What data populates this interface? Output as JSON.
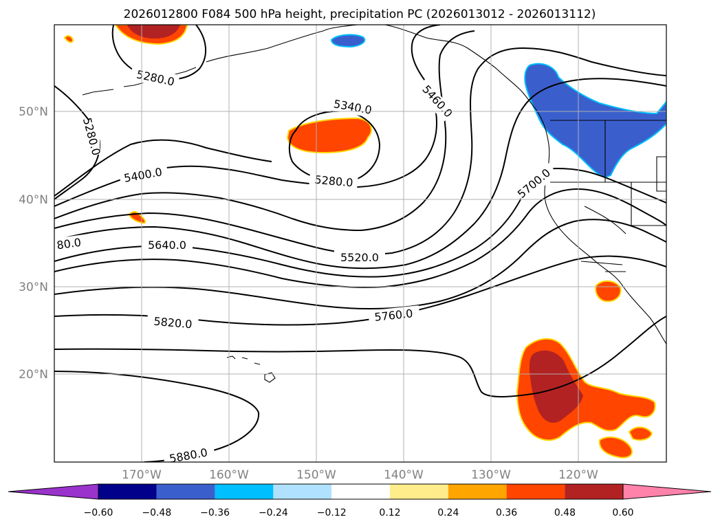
{
  "title": "2026012800 F084 500 hPa height, precipitation PC (2026013012 - 2026013112)",
  "map": {
    "lat_ticks": [
      "50°N",
      "40°N",
      "30°N",
      "20°N"
    ],
    "lon_ticks": [
      "170°W",
      "160°W",
      "150°W",
      "140°W",
      "130°W",
      "120°W"
    ],
    "contour_labels": [
      "5280.0",
      "5280.0",
      "5340.0",
      "5460.0",
      "5400.0",
      "5280.0",
      "5700.0",
      "80.0",
      "5640.0",
      "5520.0",
      "5820.0",
      "5760.0",
      "5880.0"
    ],
    "contour_color": "#000000",
    "gridlines": true
  },
  "colorbar": {
    "tick_labels": [
      "−0.60",
      "−0.48",
      "−0.36",
      "−0.24",
      "−0.12",
      "0.12",
      "0.24",
      "0.36",
      "0.48",
      "0.60"
    ],
    "colors": [
      "#9933cc",
      "#00008b",
      "#3a5fcd",
      "#00bfff",
      "#b0e2ff",
      "#ffffff",
      "#ffec8b",
      "#ffa500",
      "#ff4500",
      "#b22222",
      "#ff82ab"
    ]
  }
}
